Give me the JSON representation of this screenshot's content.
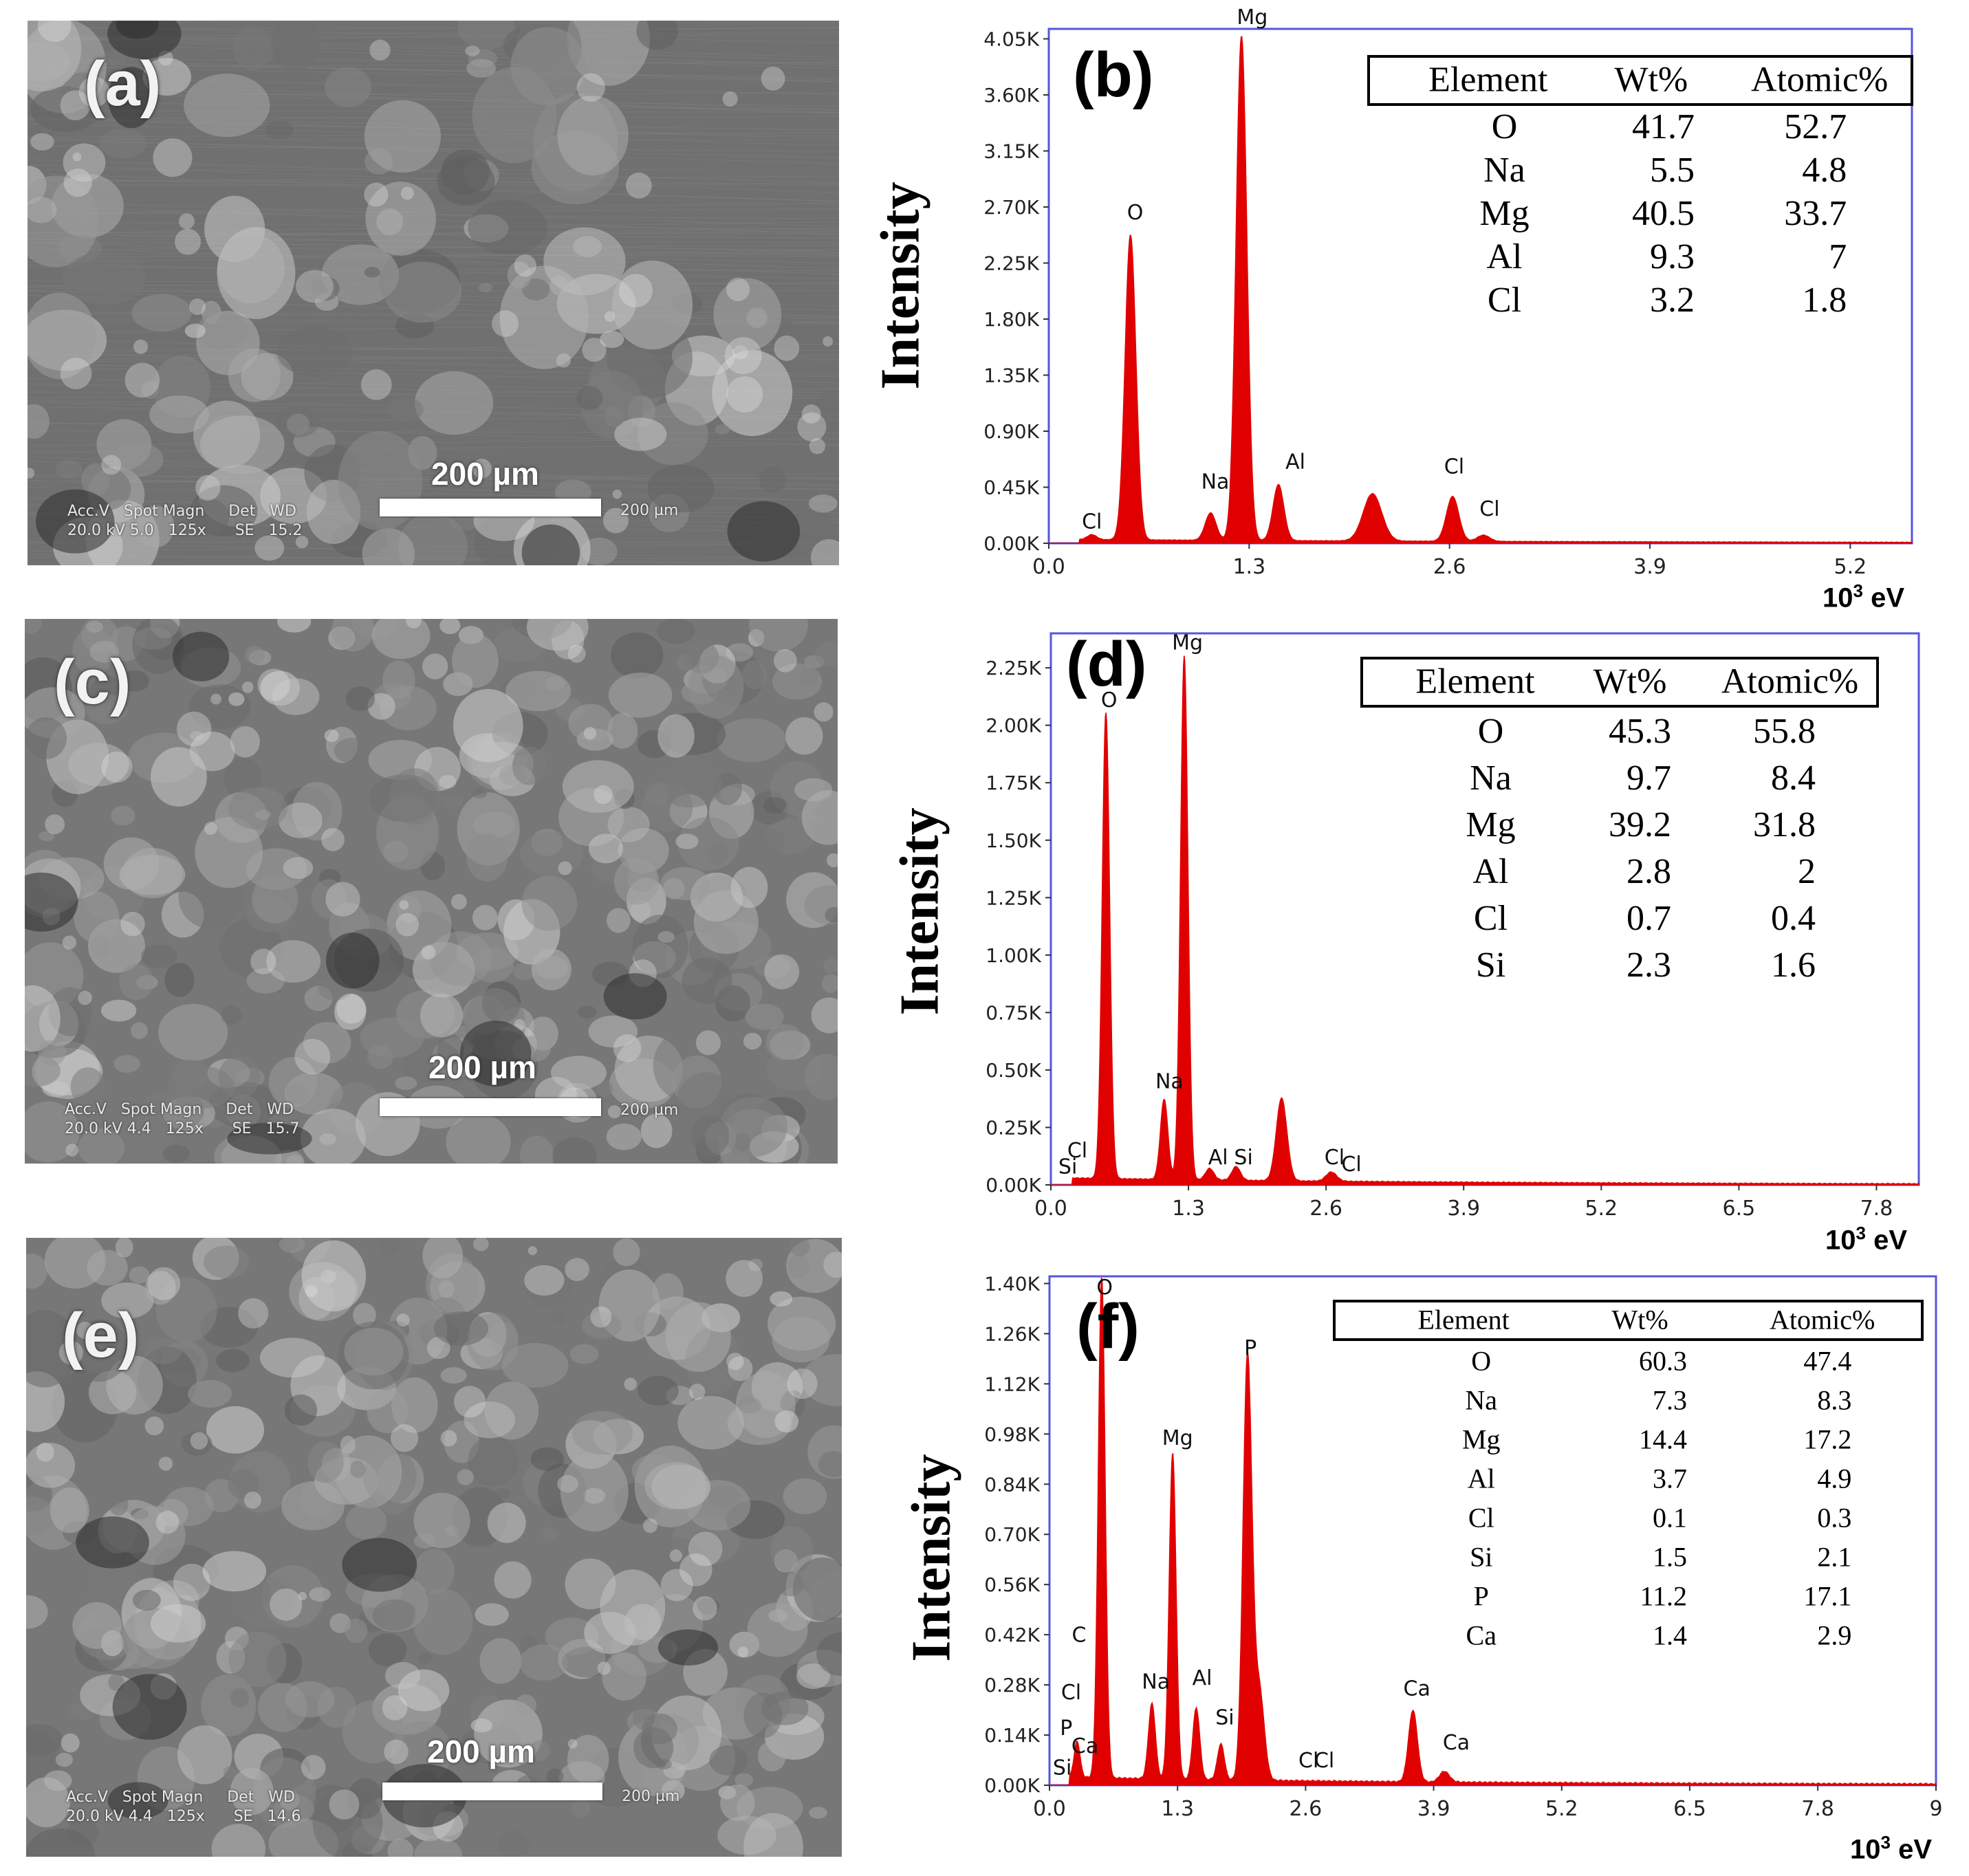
{
  "sem": [
    {
      "label": "(a)",
      "scale_label": "200 µm",
      "meta_line1": "Acc.V   Spot Magn     Det   WD",
      "meta_line2": "20.0 kV 5.0   125x      SE   15.2",
      "meta_right": "200 µm"
    },
    {
      "label": "(c)",
      "scale_label": "200 µm",
      "meta_line1": "Acc.V   Spot Magn     Det   WD",
      "meta_line2": "20.0 kV 4.4   125x      SE   15.7",
      "meta_right": "200 µm"
    },
    {
      "label": "(e)",
      "scale_label": "200 µm",
      "meta_line1": "Acc.V   Spot Magn     Det   WD",
      "meta_line2": "20.0 kV 4.4   125x      SE   14.6",
      "meta_right": "200 µm"
    }
  ],
  "chart_data": [
    {
      "type": "line",
      "panel_label": "(b)",
      "ylabel": "Intensity",
      "xlabel": "eV",
      "xlabel_prefix": "10",
      "xlabel_exp": "3",
      "xlim": [
        0,
        5.6
      ],
      "ylim": [
        0,
        4.13
      ],
      "x_ticks": [
        "0.0",
        "1.3",
        "2.6",
        "3.9",
        "5.2"
      ],
      "x_tick_values": [
        0,
        1.3,
        2.6,
        3.9,
        5.2
      ],
      "y_ticks": [
        "0.00K",
        "0.45K",
        "0.90K",
        "1.35K",
        "1.80K",
        "2.25K",
        "2.70K",
        "3.15K",
        "3.60K",
        "4.05K"
      ],
      "y_tick_values": [
        0,
        0.45,
        0.9,
        1.35,
        1.8,
        2.25,
        2.7,
        3.15,
        3.6,
        4.05
      ],
      "color": "#e00000",
      "peaks": [
        {
          "x": 0.28,
          "h": 0.04,
          "w": 0.03
        },
        {
          "x": 0.53,
          "h": 2.45,
          "w": 0.035
        },
        {
          "x": 1.05,
          "h": 0.22,
          "w": 0.035
        },
        {
          "x": 1.25,
          "h": 4.05,
          "w": 0.035
        },
        {
          "x": 1.49,
          "h": 0.45,
          "w": 0.035
        },
        {
          "x": 2.1,
          "h": 0.38,
          "w": 0.06
        },
        {
          "x": 2.62,
          "h": 0.36,
          "w": 0.04
        },
        {
          "x": 2.82,
          "h": 0.05,
          "w": 0.04
        }
      ],
      "baseline": 0.03,
      "peak_labels": [
        {
          "text": "Cl",
          "x": 0.28,
          "y": 0.12
        },
        {
          "text": "O",
          "x": 0.56,
          "y": 2.6
        },
        {
          "text": "Mg",
          "x": 1.32,
          "y": 4.17
        },
        {
          "text": "Na",
          "x": 1.08,
          "y": 0.44
        },
        {
          "text": "Al",
          "x": 1.6,
          "y": 0.6
        },
        {
          "text": "Cl",
          "x": 2.63,
          "y": 0.56
        },
        {
          "text": "Cl",
          "x": 2.86,
          "y": 0.22
        }
      ],
      "table": {
        "headers": [
          "Element",
          "Wt%",
          "Atomic%"
        ],
        "rows": [
          [
            "O",
            "41.7",
            "52.7"
          ],
          [
            "Na",
            "5.5",
            "4.8"
          ],
          [
            "Mg",
            "40.5",
            "33.7"
          ],
          [
            "Al",
            "9.3",
            "7"
          ],
          [
            "Cl",
            "3.2",
            "1.8"
          ]
        ]
      }
    },
    {
      "type": "line",
      "panel_label": "(d)",
      "ylabel": "Intensity",
      "xlabel": "eV",
      "xlabel_prefix": "10",
      "xlabel_exp": "3",
      "xlim": [
        0,
        8.2
      ],
      "ylim": [
        0,
        2.4
      ],
      "x_ticks": [
        "0.0",
        "1.3",
        "2.6",
        "3.9",
        "5.2",
        "6.5",
        "7.8"
      ],
      "x_tick_values": [
        0,
        1.3,
        2.6,
        3.9,
        5.2,
        6.5,
        7.8
      ],
      "y_ticks": [
        "0.00K",
        "0.25K",
        "0.50K",
        "0.75K",
        "1.00K",
        "1.25K",
        "1.50K",
        "1.75K",
        "2.00K",
        "2.25K"
      ],
      "y_tick_values": [
        0,
        0.25,
        0.5,
        0.75,
        1.0,
        1.25,
        1.5,
        1.75,
        2.0,
        2.25
      ],
      "color": "#e00000",
      "peaks": [
        {
          "x": 0.52,
          "h": 2.03,
          "w": 0.035
        },
        {
          "x": 1.07,
          "h": 0.35,
          "w": 0.035
        },
        {
          "x": 1.26,
          "h": 2.28,
          "w": 0.035
        },
        {
          "x": 1.5,
          "h": 0.05,
          "w": 0.04
        },
        {
          "x": 1.75,
          "h": 0.06,
          "w": 0.04
        },
        {
          "x": 2.18,
          "h": 0.36,
          "w": 0.05
        },
        {
          "x": 2.65,
          "h": 0.04,
          "w": 0.05
        }
      ],
      "baseline": 0.03,
      "peak_labels": [
        {
          "text": "Cl",
          "x": 0.25,
          "y": 0.12
        },
        {
          "text": "Si",
          "x": 0.16,
          "y": 0.05
        },
        {
          "text": "O",
          "x": 0.55,
          "y": 2.08
        },
        {
          "text": "Mg",
          "x": 1.29,
          "y": 2.33
        },
        {
          "text": "Na",
          "x": 1.12,
          "y": 0.42
        },
        {
          "text": "Al",
          "x": 1.58,
          "y": 0.09
        },
        {
          "text": "Si",
          "x": 1.82,
          "y": 0.09
        },
        {
          "text": "Cl",
          "x": 2.68,
          "y": 0.09
        },
        {
          "text": "Cl",
          "x": 2.84,
          "y": 0.06
        }
      ],
      "table": {
        "headers": [
          "Element",
          "Wt%",
          "Atomic%"
        ],
        "rows": [
          [
            "O",
            "45.3",
            "55.8"
          ],
          [
            "Na",
            "9.7",
            "8.4"
          ],
          [
            "Mg",
            "39.2",
            "31.8"
          ],
          [
            "Al",
            "2.8",
            "2"
          ],
          [
            "Cl",
            "0.7",
            "0.4"
          ],
          [
            "Si",
            "2.3",
            "1.6"
          ]
        ]
      }
    },
    {
      "type": "line",
      "panel_label": "(f)",
      "ylabel": "Intensity",
      "xlabel": "eV",
      "xlabel_prefix": "10",
      "xlabel_exp": "3",
      "xlim": [
        0,
        9.0
      ],
      "ylim": [
        0,
        1.42
      ],
      "x_ticks": [
        "0.0",
        "1.3",
        "2.6",
        "3.9",
        "5.2",
        "6.5",
        "7.8",
        "9"
      ],
      "x_tick_values": [
        0,
        1.3,
        2.6,
        3.9,
        5.2,
        6.5,
        7.8,
        9.0
      ],
      "y_ticks": [
        "0.00K",
        "0.14K",
        "0.28K",
        "0.42K",
        "0.56K",
        "0.70K",
        "0.84K",
        "0.98K",
        "1.12K",
        "1.26K",
        "1.40K"
      ],
      "y_tick_values": [
        0,
        0.14,
        0.28,
        0.42,
        0.56,
        0.7,
        0.84,
        0.98,
        1.12,
        1.26,
        1.4
      ],
      "color": "#e00000",
      "peaks": [
        {
          "x": 0.28,
          "h": 0.1,
          "w": 0.03
        },
        {
          "x": 0.53,
          "h": 1.4,
          "w": 0.035
        },
        {
          "x": 1.04,
          "h": 0.21,
          "w": 0.035
        },
        {
          "x": 1.25,
          "h": 0.91,
          "w": 0.035
        },
        {
          "x": 1.49,
          "h": 0.2,
          "w": 0.035
        },
        {
          "x": 1.74,
          "h": 0.1,
          "w": 0.035
        },
        {
          "x": 2.01,
          "h": 1.18,
          "w": 0.045
        },
        {
          "x": 2.13,
          "h": 0.25,
          "w": 0.05
        },
        {
          "x": 3.69,
          "h": 0.2,
          "w": 0.045
        },
        {
          "x": 4.01,
          "h": 0.03,
          "w": 0.05
        }
      ],
      "baseline": 0.022,
      "peak_labels": [
        {
          "text": "O",
          "x": 0.56,
          "y": 1.37
        },
        {
          "text": "C",
          "x": 0.3,
          "y": 0.4
        },
        {
          "text": "Cl",
          "x": 0.22,
          "y": 0.24
        },
        {
          "text": "P",
          "x": 0.17,
          "y": 0.14
        },
        {
          "text": "Ca",
          "x": 0.36,
          "y": 0.09
        },
        {
          "text": "Si",
          "x": 0.13,
          "y": 0.03
        },
        {
          "text": "Na",
          "x": 1.08,
          "y": 0.27
        },
        {
          "text": "Mg",
          "x": 1.3,
          "y": 0.95
        },
        {
          "text": "Al",
          "x": 1.55,
          "y": 0.28
        },
        {
          "text": "Si",
          "x": 1.78,
          "y": 0.17
        },
        {
          "text": "P",
          "x": 2.04,
          "y": 1.2
        },
        {
          "text": "Cl",
          "x": 2.63,
          "y": 0.05
        },
        {
          "text": "Cl",
          "x": 2.79,
          "y": 0.05
        },
        {
          "text": "Ca",
          "x": 3.73,
          "y": 0.25
        },
        {
          "text": "Ca",
          "x": 4.13,
          "y": 0.1
        }
      ],
      "table": {
        "headers": [
          "Element",
          "Wt%",
          "Atomic%"
        ],
        "rows": [
          [
            "O",
            "60.3",
            "47.4"
          ],
          [
            "Na",
            "7.3",
            "8.3"
          ],
          [
            "Mg",
            "14.4",
            "17.2"
          ],
          [
            "Al",
            "3.7",
            "4.9"
          ],
          [
            "Cl",
            "0.1",
            "0.3"
          ],
          [
            "Si",
            "1.5",
            "2.1"
          ],
          [
            "P",
            "11.2",
            "17.1"
          ],
          [
            "Ca",
            "1.4",
            "2.9"
          ]
        ]
      }
    }
  ]
}
